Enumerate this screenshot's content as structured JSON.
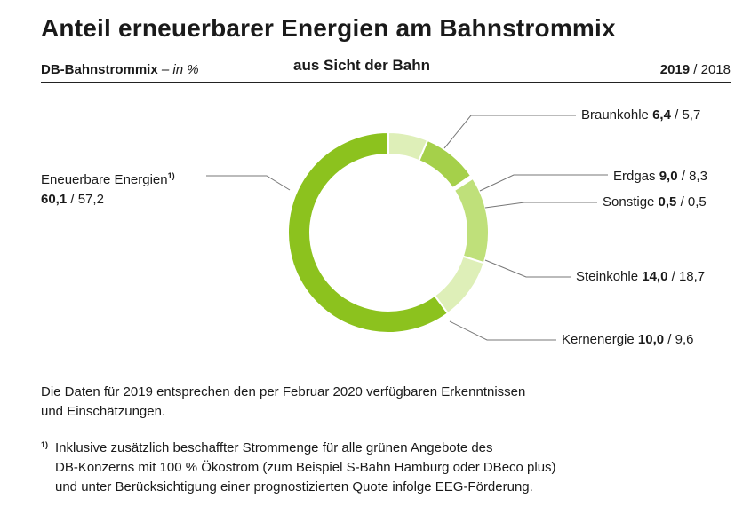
{
  "title": "Anteil erneuerbarer Energien am Bahnstrommix",
  "subtitle_left": "DB-Bahnstrommix",
  "subtitle_unit": "– in %",
  "overlay_text": "aus Sicht der Bahn",
  "year_current": "2019",
  "year_separator": "/",
  "year_previous": "2018",
  "chart_data": {
    "type": "pie",
    "title": "Anteil erneuerbarer Energien am Bahnstrommix",
    "unit": "%",
    "series_order": [
      "2019",
      "2018"
    ],
    "slices": [
      {
        "label": "Eneuerbare Energien",
        "footnote": "1)",
        "value_2019": 60.1,
        "value_2018": 57.2,
        "value_2019_text": "60,1",
        "value_2018_text": "57,2",
        "color": "#8cc21e"
      },
      {
        "label": "Braunkohle",
        "value_2019": 6.4,
        "value_2018": 5.7,
        "value_2019_text": "6,4",
        "value_2018_text": "5,7",
        "color": "#deefb8"
      },
      {
        "label": "Erdgas",
        "value_2019": 9.0,
        "value_2018": 8.3,
        "value_2019_text": "9,0",
        "value_2018_text": "8,3",
        "color": "#a5d04a"
      },
      {
        "label": "Sonstige",
        "value_2019": 0.5,
        "value_2018": 0.5,
        "value_2019_text": "0,5",
        "value_2018_text": "0,5",
        "color": "#ffffff"
      },
      {
        "label": "Steinkohle",
        "value_2019": 14.0,
        "value_2018": 18.7,
        "value_2019_text": "14,0",
        "value_2018_text": "18,7",
        "color": "#bfe07a"
      },
      {
        "label": "Kernenergie",
        "value_2019": 10.0,
        "value_2018": 9.6,
        "value_2019_text": "10,0",
        "value_2018_text": "9,6",
        "color": "#deefb8"
      }
    ]
  },
  "notes": {
    "line1": "Die Daten für 2019 entsprechen den per Februar 2020 verfügbaren Erkenntnissen",
    "line2": "und Einschätzungen.",
    "footnote_mark": "1)",
    "fn_line1": "Inklusive zusätzlich beschaffter Strommenge für alle grünen Angebote des",
    "fn_line2": "DB-Konzerns mit 100 % Ökostrom (zum Beispiel S-Bahn Hamburg oder DBeco plus)",
    "fn_line3": "und unter Berücksichtigung einer prognostizierten Quote infolge EEG-Förderung."
  }
}
